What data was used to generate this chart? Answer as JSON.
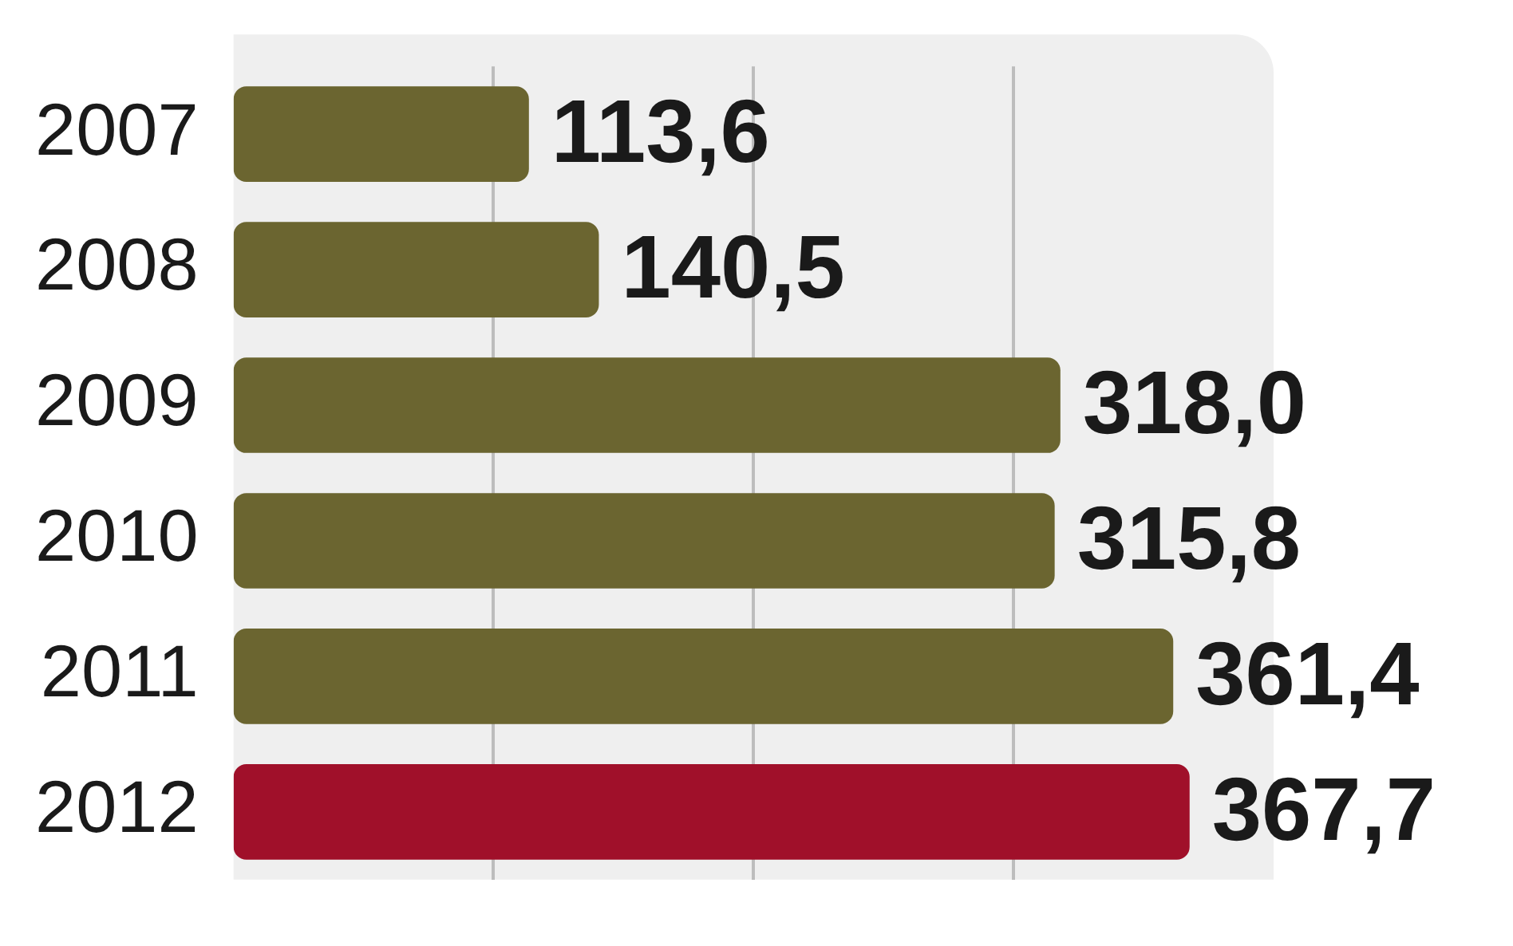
{
  "chart_data": {
    "type": "bar",
    "orientation": "horizontal",
    "categories": [
      "2007",
      "2008",
      "2009",
      "2010",
      "2011",
      "2012"
    ],
    "values": [
      113.6,
      140.5,
      318.0,
      315.8,
      361.4,
      367.7
    ],
    "colors": [
      "#6b6530",
      "#6b6530",
      "#6b6530",
      "#6b6530",
      "#6b6530",
      "#a0102a"
    ],
    "value_labels": [
      "113,6",
      "140,5",
      "318,0",
      "315,8",
      "361,4",
      "367,7"
    ],
    "xlim": [
      0,
      400
    ],
    "xticks": [
      {
        "value": 100,
        "label": null
      },
      {
        "value": 200,
        "label": null
      },
      {
        "value": 300,
        "label": null
      }
    ],
    "grid": "x",
    "tick_labels": "y"
  }
}
